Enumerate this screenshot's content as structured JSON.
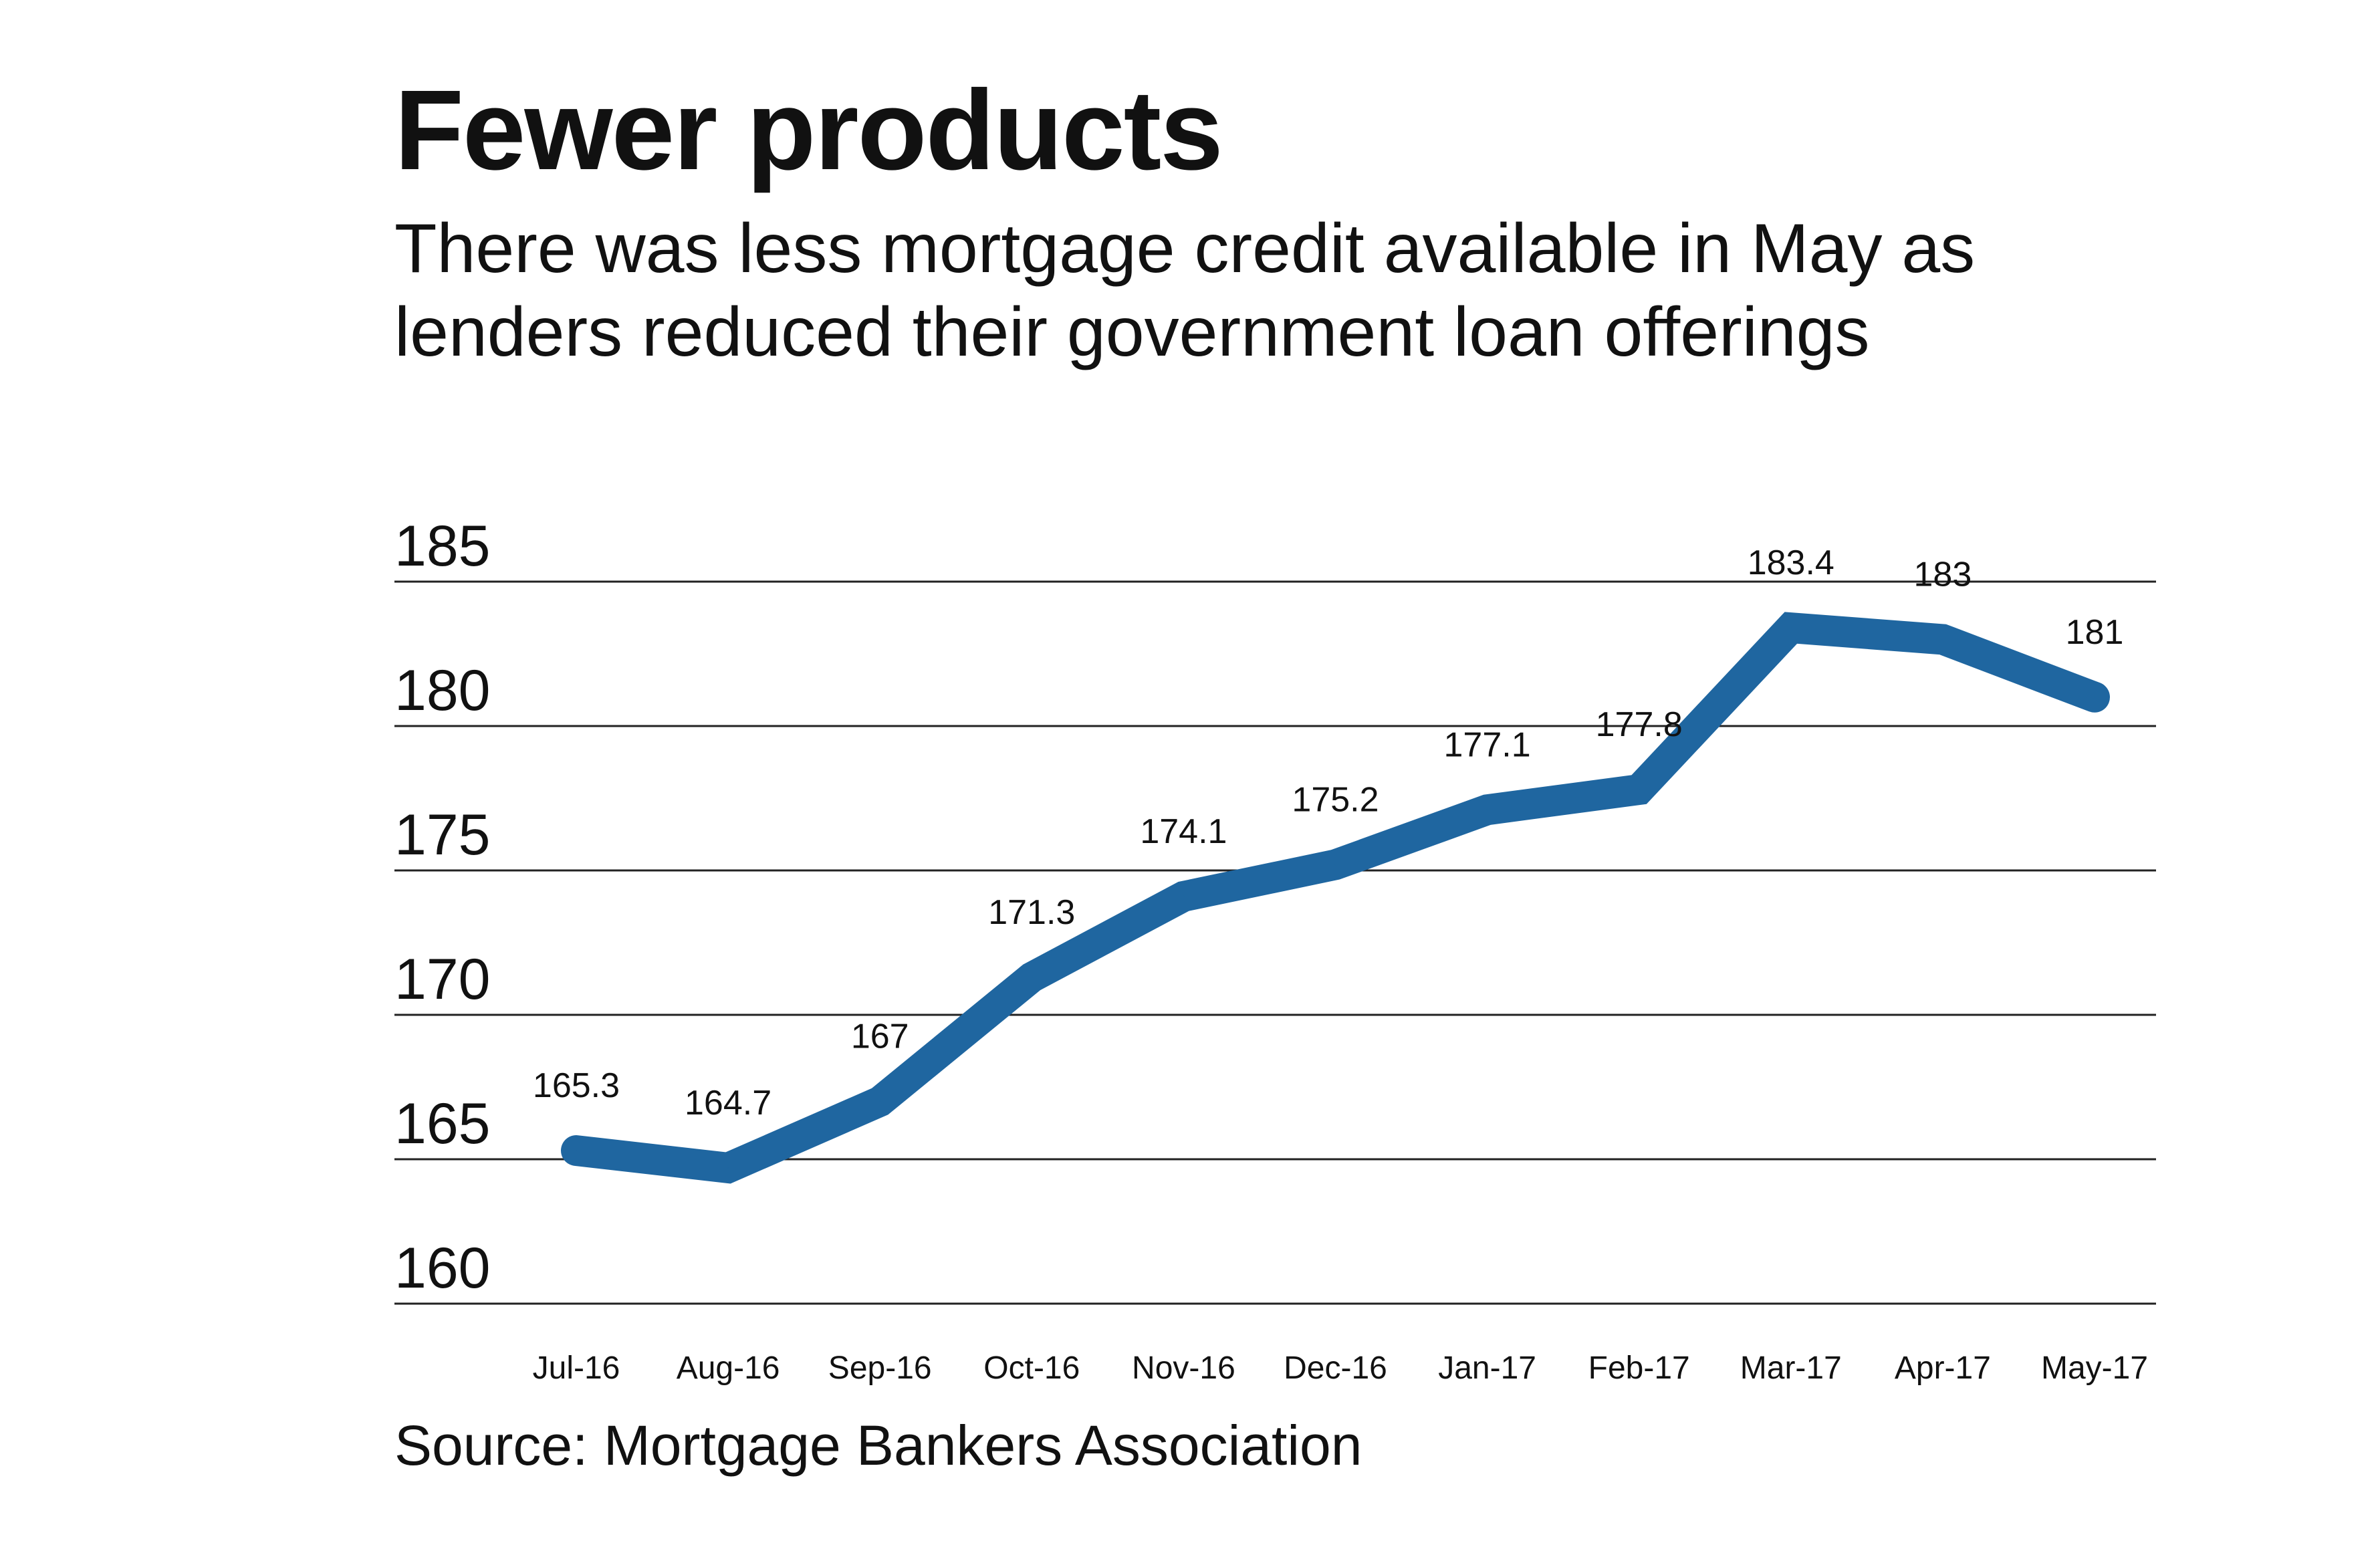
{
  "chart_data": {
    "type": "line",
    "title": "Fewer products",
    "subtitle_lines": [
      "There was less mortgage credit available in May as",
      "lenders reduced their government loan offerings"
    ],
    "source": "Source: Mortgage Bankers Association",
    "categories": [
      "Jul-16",
      "Aug-16",
      "Sep-16",
      "Oct-16",
      "Nov-16",
      "Dec-16",
      "Jan-17",
      "Feb-17",
      "Mar-17",
      "Apr-17",
      "May-17"
    ],
    "series": [
      {
        "values": [
          165.3,
          164.7,
          167,
          171.3,
          174.1,
          175.2,
          177.1,
          177.8,
          183.4,
          183,
          181
        ],
        "labels": [
          "165.3",
          "164.7",
          "167",
          "171.3",
          "174.1",
          "175.2",
          "177.1",
          "177.8",
          "183.4",
          "183",
          "181"
        ],
        "color": "#1f66a0"
      }
    ],
    "yticks": [
      160,
      165,
      170,
      175,
      180,
      185
    ],
    "ylim": [
      160,
      185
    ],
    "grid": true,
    "gridline_color": "#222222",
    "xlabel": "",
    "ylabel": ""
  }
}
